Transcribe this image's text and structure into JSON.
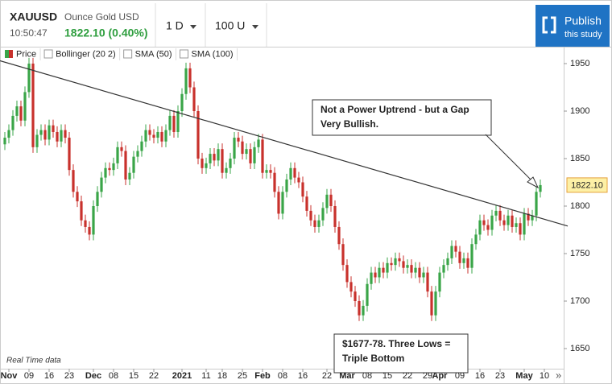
{
  "header": {
    "symbol": "XAUUSD",
    "name": "Ounce Gold USD",
    "time": "10:50:47",
    "price_change": "1822.10 (0.40%)"
  },
  "controls": {
    "interval": "1 D",
    "units": "100 U"
  },
  "publish": {
    "line1": "Publish",
    "line2": "this study"
  },
  "chart_data": {
    "type": "candlestick",
    "legend": [
      "Price",
      "Bollinger (20 2)",
      "SMA (50)",
      "SMA (100)"
    ],
    "up_color": "#3aa548",
    "down_color": "#c8312c",
    "open": [
      1865,
      1872,
      1880,
      1895,
      1905,
      1890,
      1920,
      1950,
      1862,
      1875,
      1880,
      1870,
      1885,
      1878,
      1868,
      1880,
      1872,
      1838,
      1815,
      1805,
      1785,
      1778,
      1770,
      1800,
      1815,
      1830,
      1840,
      1838,
      1845,
      1862,
      1858,
      1828,
      1835,
      1852,
      1858,
      1868,
      1880,
      1875,
      1872,
      1878,
      1868,
      1880,
      1895,
      1878,
      1900,
      1918,
      1945,
      1925,
      1900,
      1850,
      1840,
      1845,
      1855,
      1848,
      1860,
      1835,
      1840,
      1850,
      1872,
      1868,
      1855,
      1860,
      1845,
      1862,
      1870,
      1835,
      1838,
      1835,
      1815,
      1792,
      1815,
      1828,
      1840,
      1830,
      1825,
      1810,
      1795,
      1785,
      1778,
      1785,
      1798,
      1812,
      1800,
      1778,
      1760,
      1738,
      1720,
      1710,
      1700,
      1685,
      1695,
      1718,
      1730,
      1725,
      1735,
      1730,
      1740,
      1738,
      1745,
      1742,
      1735,
      1738,
      1730,
      1735,
      1725,
      1730,
      1710,
      1685,
      1710,
      1730,
      1738,
      1745,
      1758,
      1752,
      1740,
      1745,
      1735,
      1760,
      1770,
      1785,
      1780,
      1775,
      1790,
      1795,
      1785,
      1780,
      1790,
      1778,
      1782,
      1770,
      1792,
      1785,
      1790,
      1815
    ],
    "high": [
      1878,
      1886,
      1901,
      1911,
      1911,
      1926,
      1956,
      1956,
      1881,
      1886,
      1886,
      1891,
      1891,
      1884,
      1886,
      1886,
      1878,
      1844,
      1821,
      1811,
      1791,
      1784,
      1806,
      1821,
      1836,
      1846,
      1846,
      1851,
      1868,
      1868,
      1864,
      1841,
      1858,
      1864,
      1874,
      1886,
      1886,
      1881,
      1884,
      1884,
      1886,
      1901,
      1901,
      1906,
      1924,
      1951,
      1951,
      1931,
      1906,
      1856,
      1851,
      1861,
      1861,
      1866,
      1866,
      1846,
      1856,
      1878,
      1878,
      1874,
      1866,
      1866,
      1868,
      1876,
      1876,
      1844,
      1844,
      1841,
      1821,
      1821,
      1834,
      1846,
      1846,
      1836,
      1831,
      1816,
      1801,
      1791,
      1791,
      1804,
      1818,
      1818,
      1806,
      1784,
      1766,
      1744,
      1726,
      1716,
      1706,
      1701,
      1724,
      1736,
      1736,
      1741,
      1741,
      1746,
      1746,
      1751,
      1751,
      1748,
      1744,
      1744,
      1741,
      1741,
      1736,
      1736,
      1716,
      1716,
      1736,
      1744,
      1751,
      1764,
      1764,
      1758,
      1751,
      1751,
      1766,
      1776,
      1791,
      1791,
      1786,
      1796,
      1801,
      1801,
      1791,
      1796,
      1796,
      1788,
      1788,
      1798,
      1798,
      1796,
      1821,
      1828
    ],
    "low": [
      1859,
      1866,
      1874,
      1889,
      1884,
      1884,
      1914,
      1856,
      1856,
      1869,
      1864,
      1864,
      1872,
      1862,
      1862,
      1866,
      1832,
      1809,
      1799,
      1779,
      1772,
      1764,
      1764,
      1794,
      1809,
      1824,
      1832,
      1832,
      1839,
      1852,
      1822,
      1822,
      1829,
      1846,
      1852,
      1862,
      1869,
      1866,
      1866,
      1862,
      1862,
      1874,
      1872,
      1872,
      1894,
      1912,
      1919,
      1894,
      1844,
      1834,
      1834,
      1839,
      1842,
      1842,
      1829,
      1829,
      1834,
      1844,
      1862,
      1849,
      1849,
      1839,
      1839,
      1856,
      1829,
      1829,
      1829,
      1809,
      1786,
      1786,
      1809,
      1822,
      1824,
      1819,
      1804,
      1789,
      1779,
      1772,
      1772,
      1779,
      1792,
      1794,
      1772,
      1754,
      1732,
      1714,
      1704,
      1694,
      1679,
      1679,
      1689,
      1712,
      1719,
      1719,
      1724,
      1724,
      1732,
      1732,
      1736,
      1729,
      1729,
      1724,
      1724,
      1719,
      1719,
      1704,
      1679,
      1679,
      1704,
      1724,
      1732,
      1739,
      1746,
      1734,
      1734,
      1729,
      1729,
      1754,
      1764,
      1774,
      1769,
      1769,
      1784,
      1779,
      1774,
      1774,
      1772,
      1772,
      1764,
      1764,
      1779,
      1779,
      1784,
      1809
    ],
    "close": [
      1872,
      1880,
      1895,
      1905,
      1890,
      1920,
      1950,
      1862,
      1875,
      1880,
      1870,
      1885,
      1878,
      1868,
      1880,
      1872,
      1838,
      1815,
      1805,
      1785,
      1778,
      1770,
      1800,
      1815,
      1830,
      1840,
      1838,
      1845,
      1862,
      1858,
      1828,
      1835,
      1852,
      1858,
      1868,
      1880,
      1875,
      1872,
      1878,
      1868,
      1880,
      1895,
      1878,
      1900,
      1918,
      1945,
      1925,
      1900,
      1850,
      1840,
      1845,
      1855,
      1848,
      1860,
      1835,
      1840,
      1850,
      1872,
      1868,
      1855,
      1860,
      1845,
      1862,
      1870,
      1835,
      1838,
      1835,
      1815,
      1792,
      1815,
      1828,
      1840,
      1830,
      1825,
      1810,
      1795,
      1785,
      1778,
      1785,
      1798,
      1812,
      1800,
      1778,
      1760,
      1738,
      1720,
      1710,
      1700,
      1685,
      1695,
      1718,
      1730,
      1725,
      1735,
      1730,
      1740,
      1738,
      1745,
      1742,
      1735,
      1738,
      1730,
      1735,
      1725,
      1730,
      1710,
      1685,
      1710,
      1730,
      1738,
      1745,
      1758,
      1752,
      1740,
      1745,
      1735,
      1760,
      1770,
      1785,
      1780,
      1775,
      1790,
      1795,
      1785,
      1780,
      1790,
      1778,
      1782,
      1770,
      1792,
      1785,
      1790,
      1815,
      1822.1
    ],
    "price_tag": {
      "value": 1822.1,
      "label": "1822.10"
    },
    "ylim": [
      1628.8,
      1967.8
    ],
    "yticks": [
      1650,
      1700,
      1750,
      1800,
      1850,
      1900,
      1950
    ],
    "xlim": [
      -1.2,
      138.8
    ],
    "xticks": [
      {
        "value": 1,
        "label": "Nov"
      },
      {
        "value": 6,
        "label": "09"
      },
      {
        "value": 11,
        "label": "16"
      },
      {
        "value": 16,
        "label": "23"
      },
      {
        "value": 22,
        "label": "Dec"
      },
      {
        "value": 27,
        "label": "08"
      },
      {
        "value": 32,
        "label": "15"
      },
      {
        "value": 37,
        "label": "22"
      },
      {
        "value": 44,
        "label": "2021"
      },
      {
        "value": 50,
        "label": "11"
      },
      {
        "value": 54,
        "label": "18"
      },
      {
        "value": 59,
        "label": "25"
      },
      {
        "value": 64,
        "label": "Feb"
      },
      {
        "value": 69,
        "label": "08"
      },
      {
        "value": 74,
        "label": "16"
      },
      {
        "value": 80,
        "label": "22"
      },
      {
        "value": 85,
        "label": "Mar"
      },
      {
        "value": 90,
        "label": "08"
      },
      {
        "value": 95,
        "label": "15"
      },
      {
        "value": 100,
        "label": "22"
      },
      {
        "value": 105,
        "label": "29"
      },
      {
        "value": 108,
        "label": "Apr"
      },
      {
        "value": 113,
        "label": "09"
      },
      {
        "value": 118,
        "label": "16"
      },
      {
        "value": 123,
        "label": "23"
      },
      {
        "value": 129,
        "label": "May"
      },
      {
        "value": 134,
        "label": "10"
      }
    ],
    "trendline": {
      "x": [
        -1.2,
        139.8
      ],
      "y": [
        1953,
        1779
      ]
    },
    "annotations": [
      [
        "Not a Power Uptrend - but a Gap",
        "Very Bullish."
      ],
      [
        "$1677-78. Three Lows =",
        "Triple Bottom"
      ]
    ],
    "footnote": "Real Time data",
    "scroll": "»"
  }
}
